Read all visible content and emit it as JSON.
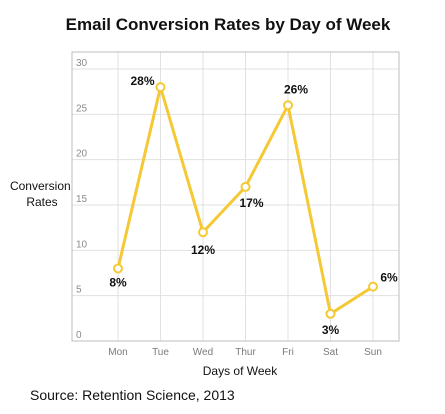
{
  "chart_data": {
    "type": "line",
    "title": "Email Conversion Rates by Day of Week",
    "xlabel": "Days of Week",
    "ylabel_lines": [
      "Conversion",
      "Rates"
    ],
    "categories": [
      "Mon",
      "Tue",
      "Wed",
      "Thur",
      "Fri",
      "Sat",
      "Sun"
    ],
    "series": [
      {
        "values": [
          8,
          28,
          12,
          17,
          26,
          3,
          6
        ],
        "data_labels": [
          "8%",
          "28%",
          "12%",
          "17%",
          "26%",
          "3%",
          "6%"
        ]
      }
    ],
    "ylim": [
      0,
      30
    ],
    "yticks": [
      0,
      5,
      10,
      15,
      20,
      25,
      30
    ],
    "grid": true,
    "line_color": "#f5c935",
    "source": "Source: Retention Science, 2013"
  }
}
